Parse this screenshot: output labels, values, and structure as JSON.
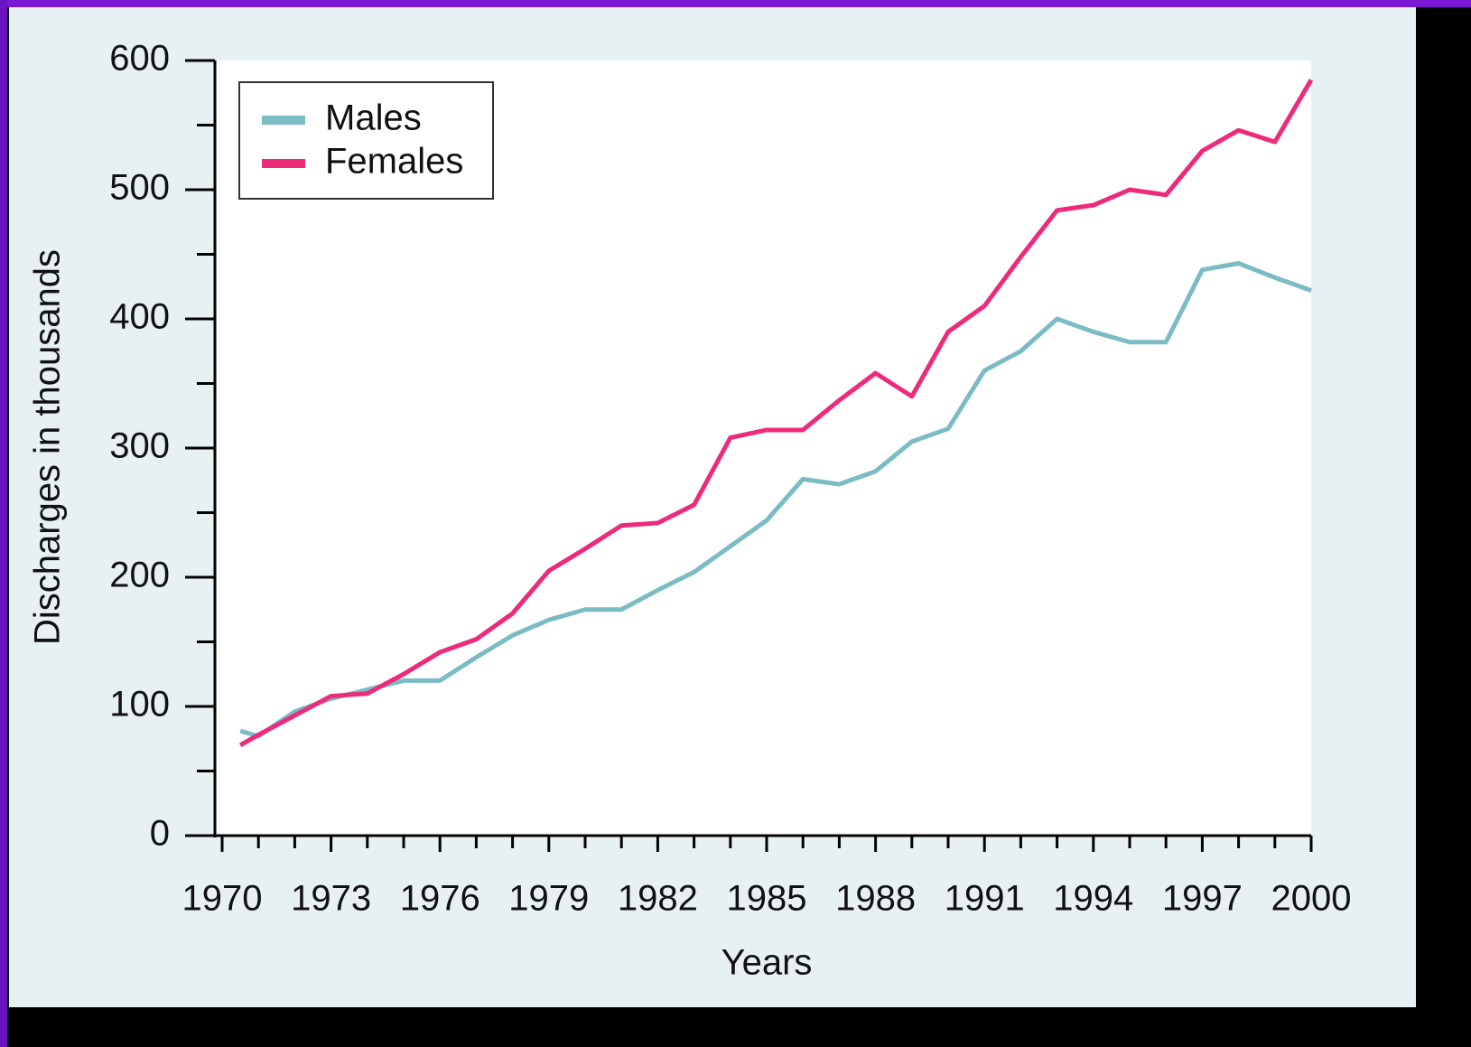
{
  "chart_data": {
    "type": "line",
    "x_label": "Years",
    "y_label": "Discharges in thousands",
    "x": [
      1970.5,
      1971,
      1972,
      1973,
      1974,
      1975,
      1976,
      1977,
      1978,
      1979,
      1980,
      1981,
      1982,
      1983,
      1984,
      1985,
      1986,
      1987,
      1988,
      1989,
      1990,
      1991,
      1992,
      1993,
      1994,
      1995,
      1996,
      1997,
      1998,
      1999,
      2000
    ],
    "series": [
      {
        "name": "Males",
        "color": "#7bbcc4",
        "values": [
          81,
          77,
          96,
          106,
          113,
          120,
          120,
          138,
          155,
          167,
          175,
          175,
          190,
          204,
          224,
          244,
          276,
          272,
          282,
          305,
          315,
          360,
          375,
          400,
          390,
          382,
          382,
          438,
          443,
          432,
          422
        ]
      },
      {
        "name": "Females",
        "color": "#ee2a7b",
        "values": [
          70,
          78,
          93,
          108,
          110,
          125,
          142,
          152,
          172,
          205,
          222,
          240,
          242,
          256,
          308,
          314,
          314,
          337,
          358,
          340,
          390,
          410,
          448,
          484,
          488,
          500,
          496,
          530,
          546,
          537,
          585
        ]
      }
    ],
    "xlim": [
      1970,
      2000
    ],
    "xticks": [
      1970,
      1973,
      1976,
      1979,
      1982,
      1985,
      1988,
      1991,
      1994,
      1997,
      2000
    ],
    "xminorticks": [
      1971,
      1972,
      1974,
      1975,
      1977,
      1978,
      1980,
      1981,
      1983,
      1984,
      1986,
      1987,
      1989,
      1990,
      1992,
      1993,
      1995,
      1996,
      1998,
      1999
    ],
    "ylim": [
      0,
      600
    ],
    "yticks": [
      0,
      100,
      200,
      300,
      400,
      500,
      600
    ],
    "yminorticks": [
      50,
      150,
      250,
      350,
      450,
      550
    ],
    "legend": "upper-left"
  }
}
